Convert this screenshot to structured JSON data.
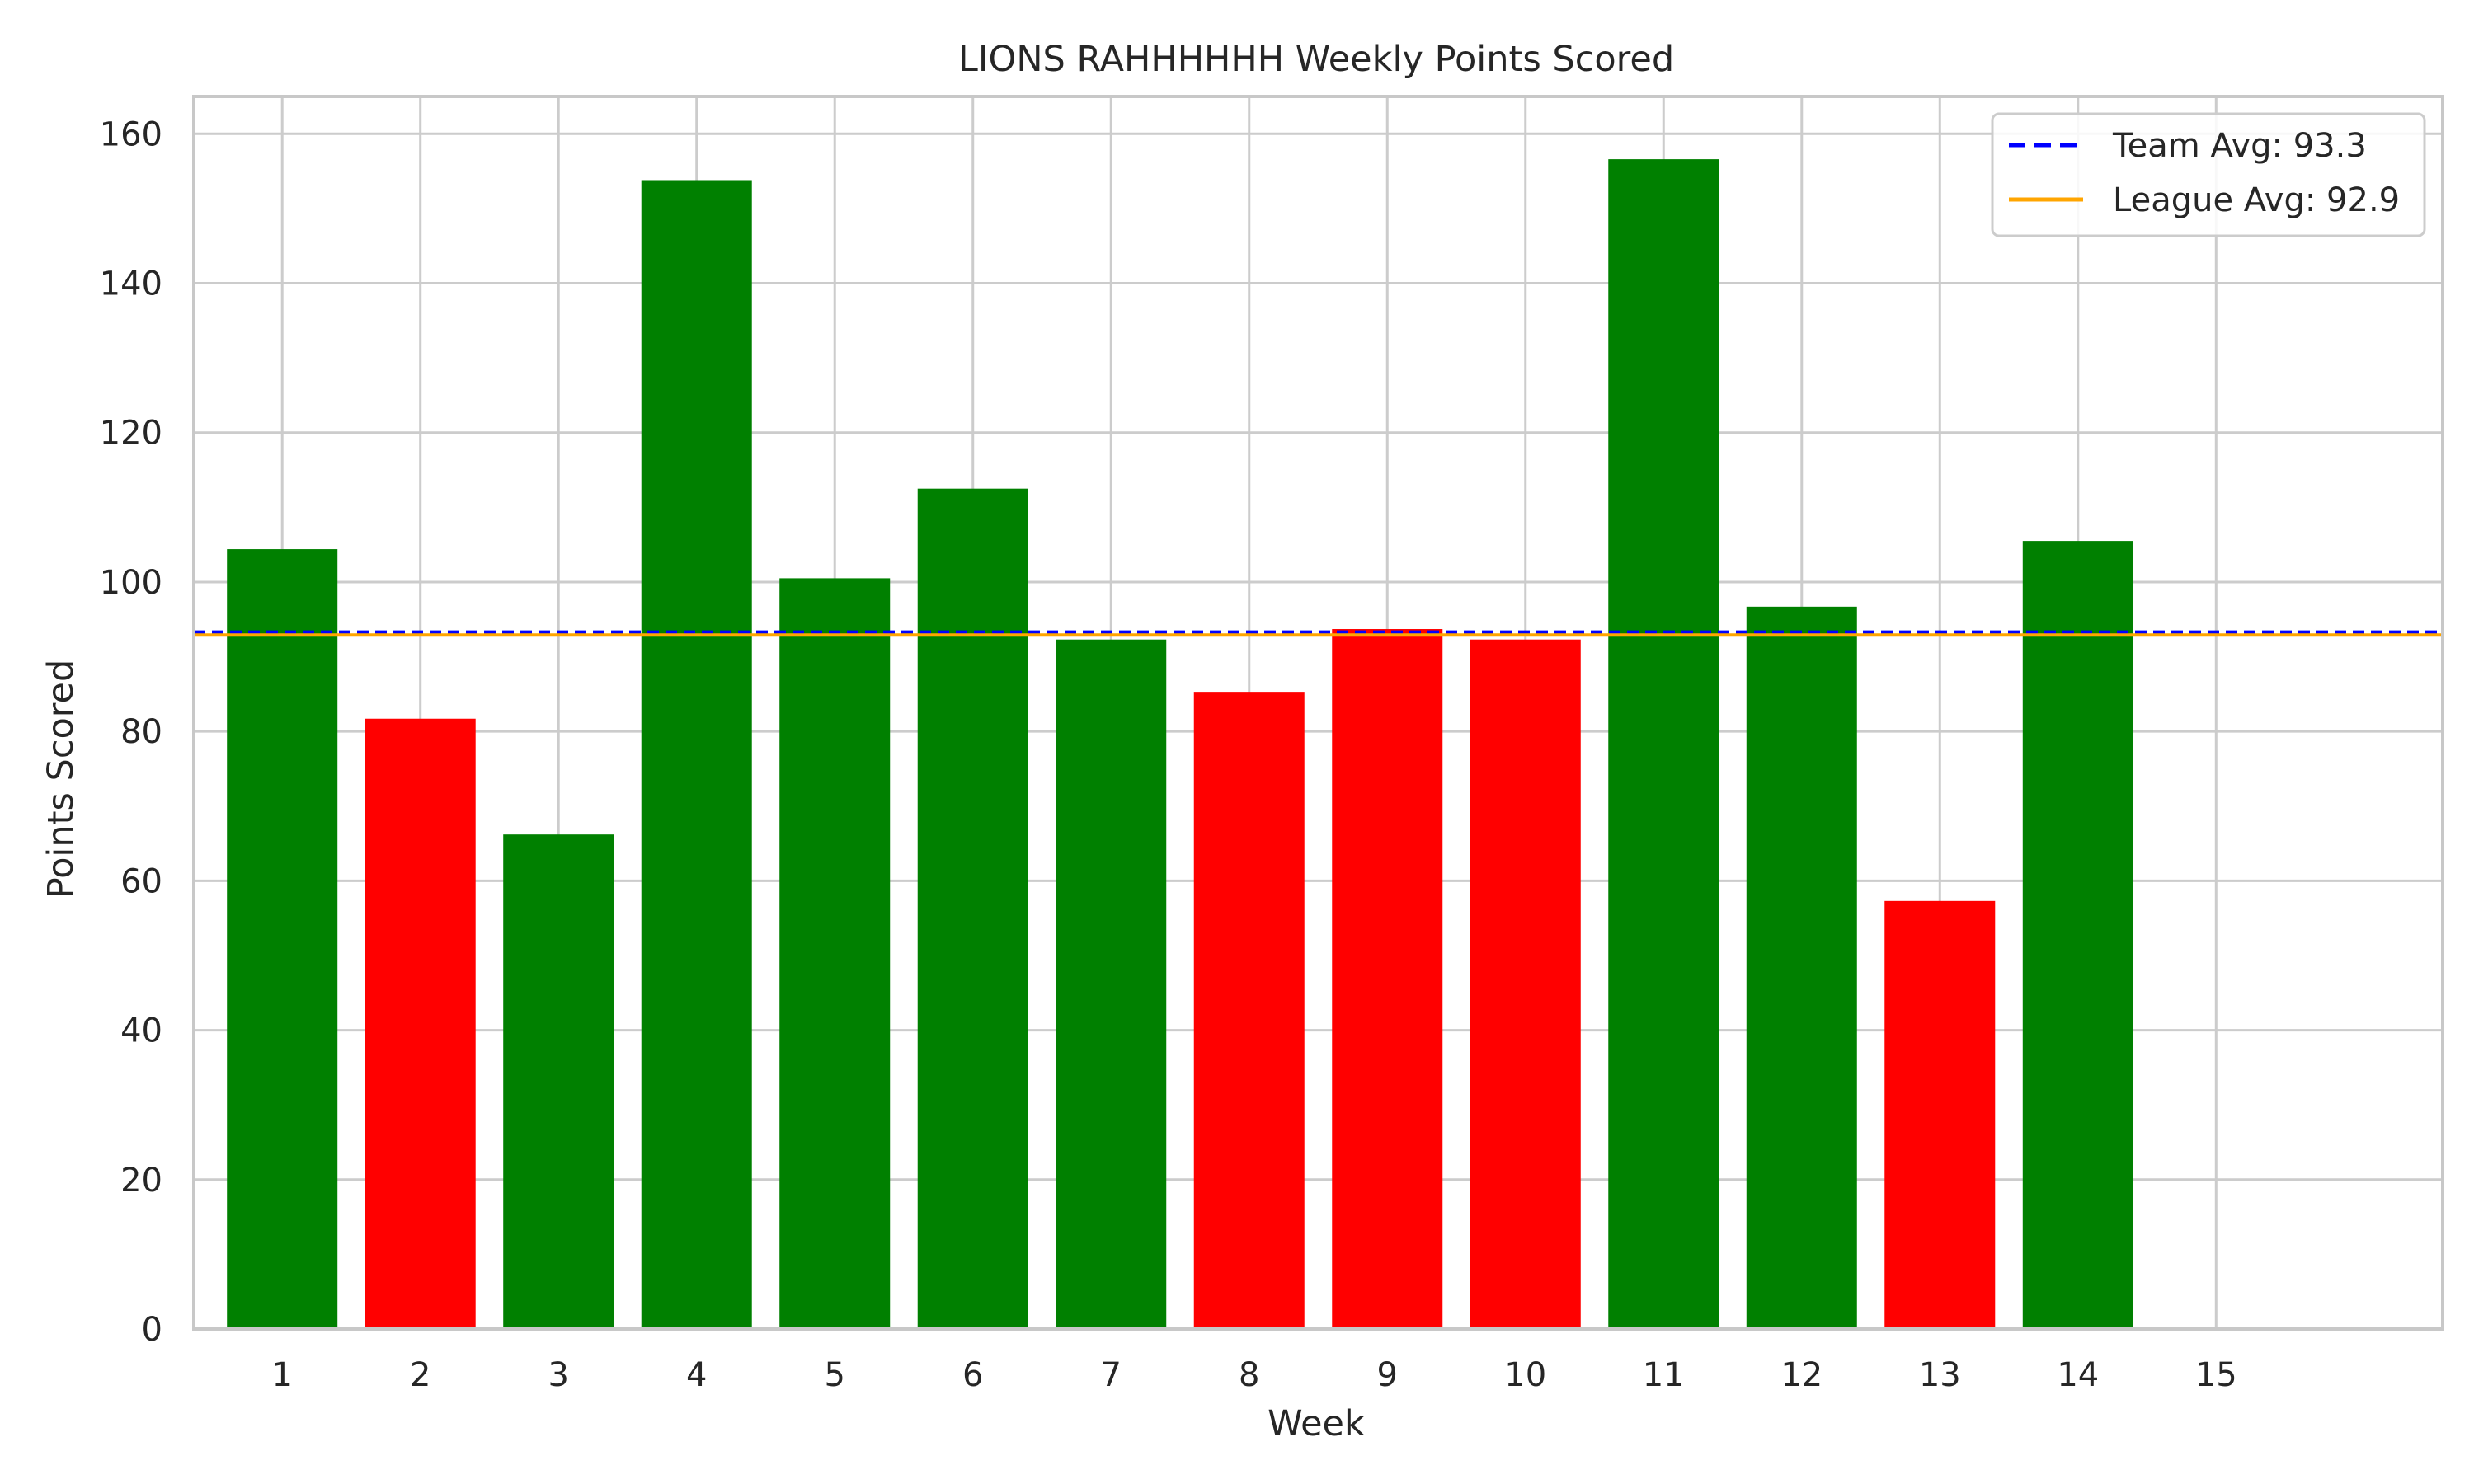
{
  "chart_data": {
    "type": "bar",
    "title": "LIONS RAHHHHHH Weekly Points Scored",
    "xlabel": "Week",
    "ylabel": "Points Scored",
    "categories": [
      "1",
      "2",
      "3",
      "4",
      "5",
      "6",
      "7",
      "8",
      "9",
      "10",
      "11",
      "12",
      "13",
      "14",
      "15"
    ],
    "values": [
      104.4,
      81.7,
      66.2,
      153.8,
      100.5,
      112.5,
      92.3,
      85.3,
      93.7,
      92.3,
      156.6,
      96.7,
      57.3,
      105.5,
      null
    ],
    "bar_colors": [
      "#008000",
      "#ff0000",
      "#008000",
      "#008000",
      "#008000",
      "#008000",
      "#008000",
      "#ff0000",
      "#ff0000",
      "#ff0000",
      "#008000",
      "#008000",
      "#ff0000",
      "#008000",
      ""
    ],
    "ylim": [
      0,
      165
    ],
    "xlim": [
      -0.64,
      15.64
    ],
    "yticks": [
      0,
      20,
      40,
      60,
      80,
      100,
      120,
      140,
      160
    ],
    "grid": true,
    "legend_placement": "top-right",
    "reference_lines": [
      {
        "name": "Team Avg: 93.3",
        "value": 93.3,
        "color": "#0000ff",
        "style": "dashed"
      },
      {
        "name": "League Avg: 92.9",
        "value": 92.9,
        "color": "#ffa500",
        "style": "solid"
      }
    ]
  }
}
